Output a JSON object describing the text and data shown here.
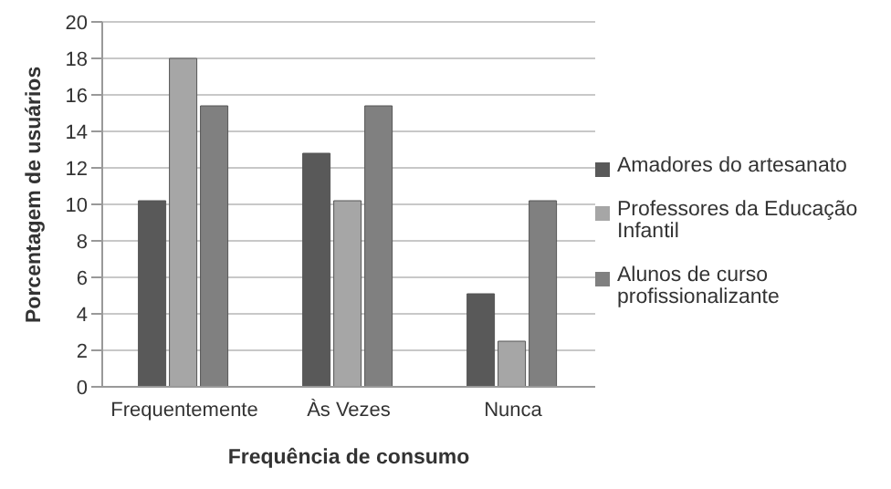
{
  "chart_data": {
    "type": "bar",
    "xlabel": "Frequência de consumo",
    "ylabel": "Porcentagem de usuários",
    "categories": [
      "Frequentemente",
      "Às Vezes",
      "Nunca"
    ],
    "series": [
      {
        "name": "Amadores do artesanato",
        "color": "#595959",
        "values": [
          10.2,
          12.8,
          5.1
        ]
      },
      {
        "name": "Professores da Educação Infantil",
        "color": "#a6a6a6",
        "values": [
          18,
          10.2,
          2.5
        ]
      },
      {
        "name": "Alunos de curso profissionalizante",
        "color": "#808080",
        "values": [
          15.4,
          15.4,
          10.2
        ]
      }
    ],
    "ylim": [
      0,
      20
    ],
    "yticks": [
      0,
      2,
      4,
      6,
      8,
      10,
      12,
      14,
      16,
      18,
      20
    ],
    "grid": true,
    "legend": "right"
  }
}
